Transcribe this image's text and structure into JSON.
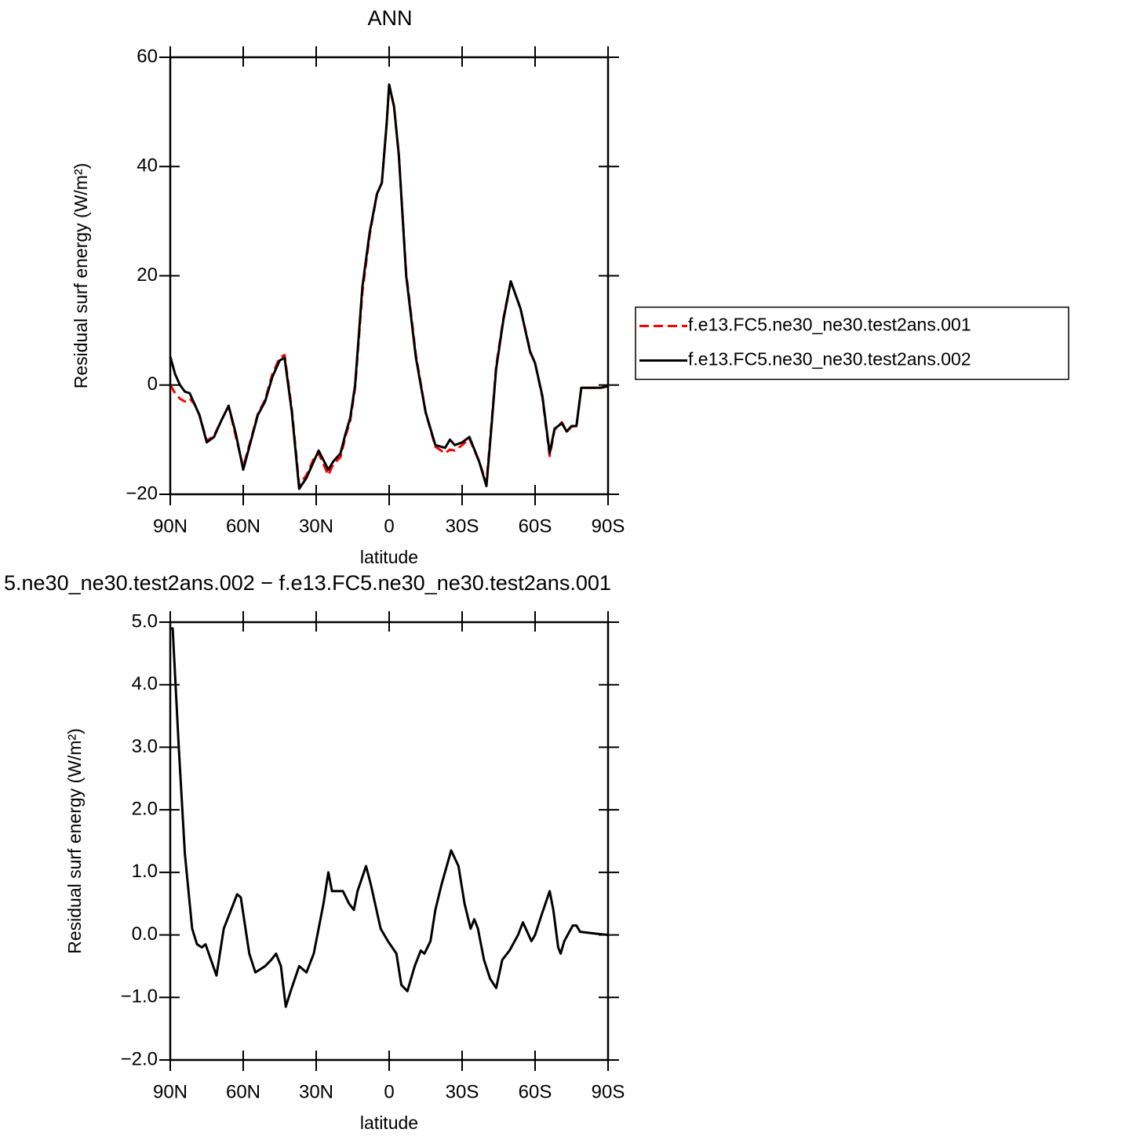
{
  "chart_data": [
    {
      "type": "line",
      "title": "ANN",
      "xlabel": "latitude",
      "ylabel": "Residual surf energy (W/m²)",
      "xlim": [
        90,
        -90
      ],
      "xticks": [
        {
          "value": 90,
          "label": "90N"
        },
        {
          "value": 60,
          "label": "60N"
        },
        {
          "value": 30,
          "label": "30N"
        },
        0,
        {
          "value": -30,
          "label": "30S"
        },
        {
          "value": -60,
          "label": "60S"
        },
        {
          "value": -90,
          "label": "90S"
        }
      ],
      "ylim": [
        -20,
        60
      ],
      "yticks": [
        {
          "value": -20,
          "label": "−20"
        },
        0,
        20,
        40,
        60
      ],
      "legend": "right",
      "x": [
        90,
        88,
        86,
        84,
        82,
        80,
        78,
        75,
        72,
        69,
        66,
        63,
        60,
        57,
        54,
        51,
        48,
        45,
        43,
        40,
        37,
        34,
        31,
        29,
        25,
        23,
        20,
        18,
        16,
        14,
        11,
        8,
        5,
        3,
        1,
        0,
        -2,
        -4,
        -7,
        -11,
        -15,
        -19,
        -23,
        -25,
        -27,
        -30,
        -33,
        -37,
        -40,
        -42,
        -44,
        -47,
        -50,
        -54,
        -58,
        -60,
        -63,
        -66,
        -68,
        -71,
        -73,
        -75,
        -77,
        -79,
        -83,
        -87,
        -90
      ],
      "series": [
        {
          "name": "f.e13.FC5.ne30_ne30.test2ans.001",
          "color": "#ff0000",
          "linestyle": "dashed",
          "values": [
            0,
            -1.5,
            -2.5,
            -3,
            -2.5,
            -3.5,
            -5.5,
            -10.2,
            -9.3,
            -6.5,
            -3.8,
            -9.5,
            -15,
            -10.2,
            -5.3,
            -2.7,
            2,
            5,
            5.5,
            -4.5,
            -18.3,
            -16.5,
            -13.5,
            -12.5,
            -16.5,
            -14.5,
            -13.2,
            -9.5,
            -6.5,
            -0.5,
            17,
            27.5,
            35,
            37,
            48,
            55,
            51,
            42,
            20.5,
            5.5,
            -5,
            -11.3,
            -12.5,
            -11.8,
            -12,
            -11,
            -9.8,
            -14,
            -18,
            -7.5,
            3.5,
            12.3,
            19,
            14,
            6.2,
            4,
            -2.3,
            -13,
            -8.2,
            -6.8,
            -8.6,
            -7.6,
            -7.6,
            -0.5,
            -0.5,
            -0.5,
            -0.2
          ]
        },
        {
          "name": "f.e13.FC5.ne30_ne30.test2ans.002",
          "color": "#000000",
          "linestyle": "solid",
          "values": [
            5.2,
            2,
            0,
            -1.2,
            -1.5,
            -3.5,
            -5.5,
            -10.5,
            -9.5,
            -6.5,
            -3.8,
            -9,
            -15.5,
            -10.5,
            -5.5,
            -3,
            1.5,
            4.5,
            5,
            -5,
            -19,
            -17,
            -14,
            -12,
            -15.5,
            -14,
            -12.5,
            -9,
            -6,
            0,
            18,
            28,
            35,
            37,
            48,
            55,
            51,
            42,
            20,
            5,
            -5,
            -11,
            -11.5,
            -10,
            -11,
            -10.5,
            -9.5,
            -14,
            -18.5,
            -8,
            3,
            12,
            19,
            14,
            6,
            4,
            -2,
            -12.5,
            -8,
            -7,
            -8.5,
            -7.5,
            -7.5,
            -0.5,
            -0.5,
            -0.5,
            -0.2
          ]
        }
      ]
    },
    {
      "type": "line",
      "title": "5.ne30_ne30.test2ans.002 − f.e13.FC5.ne30_ne30.test2ans.001",
      "xlabel": "latitude",
      "ylabel": "Residual surf energy (W/m²)",
      "xlim": [
        90,
        -90
      ],
      "xticks": [
        {
          "value": 90,
          "label": "90N"
        },
        {
          "value": 60,
          "label": "60N"
        },
        {
          "value": 30,
          "label": "30N"
        },
        0,
        {
          "value": -30,
          "label": "30S"
        },
        {
          "value": -60,
          "label": "60S"
        },
        {
          "value": -90,
          "label": "90S"
        }
      ],
      "ylim": [
        -2,
        5
      ],
      "yticks": [
        {
          "value": -2,
          "label": "−2.0"
        },
        {
          "value": -1,
          "label": "−1.0"
        },
        {
          "value": 0,
          "label": "0.0"
        },
        {
          "value": 1,
          "label": "1.0"
        },
        {
          "value": 2,
          "label": "2.0"
        },
        {
          "value": 3,
          "label": "3.0"
        },
        {
          "value": 4,
          "label": "4.0"
        },
        {
          "value": 5,
          "label": "5.0"
        }
      ],
      "x": [
        90,
        89,
        86.5,
        84,
        81,
        79,
        77,
        75.5,
        71,
        68,
        66,
        62.5,
        61,
        57.5,
        55,
        51,
        48.5,
        46.5,
        44.5,
        42.5,
        40.5,
        37,
        34,
        31,
        27,
        25,
        23.5,
        19,
        16.5,
        14.5,
        13,
        9.5,
        7.5,
        3.5,
        0.5,
        -3,
        -5,
        -7.5,
        -10.5,
        -13,
        -14.5,
        -17,
        -19,
        -21.5,
        -25.5,
        -28.5,
        -31,
        -33.5,
        -35,
        -36.5,
        -39,
        -41.5,
        -44,
        -46.5,
        -49.5,
        -53,
        -55,
        -58.5,
        -60,
        -62.5,
        -66,
        -67.5,
        -69.5,
        -70.5,
        -72,
        -75.5,
        -77,
        -78.5,
        -85,
        -90
      ],
      "series": [
        {
          "color": "#000000",
          "linestyle": "solid",
          "values": [
            4.9,
            4.9,
            3,
            1.3,
            0.1,
            -0.15,
            -0.2,
            -0.15,
            -0.65,
            0.1,
            0.3,
            0.65,
            0.6,
            -0.3,
            -0.6,
            -0.5,
            -0.4,
            -0.3,
            -0.5,
            -1.15,
            -0.9,
            -0.5,
            -0.6,
            -0.3,
            0.5,
            1.0,
            0.7,
            0.7,
            0.5,
            0.4,
            0.7,
            1.1,
            0.8,
            0.1,
            -0.1,
            -0.3,
            -0.8,
            -0.9,
            -0.5,
            -0.25,
            -0.3,
            -0.1,
            0.4,
            0.8,
            1.35,
            1.1,
            0.5,
            0.1,
            0.25,
            0.1,
            -0.4,
            -0.7,
            -0.85,
            -0.4,
            -0.25,
            0,
            0.2,
            -0.1,
            0,
            0.3,
            0.7,
            0.4,
            -0.2,
            -0.3,
            -0.1,
            0.15,
            0.15,
            0.05,
            0.02,
            0
          ]
        }
      ]
    }
  ]
}
